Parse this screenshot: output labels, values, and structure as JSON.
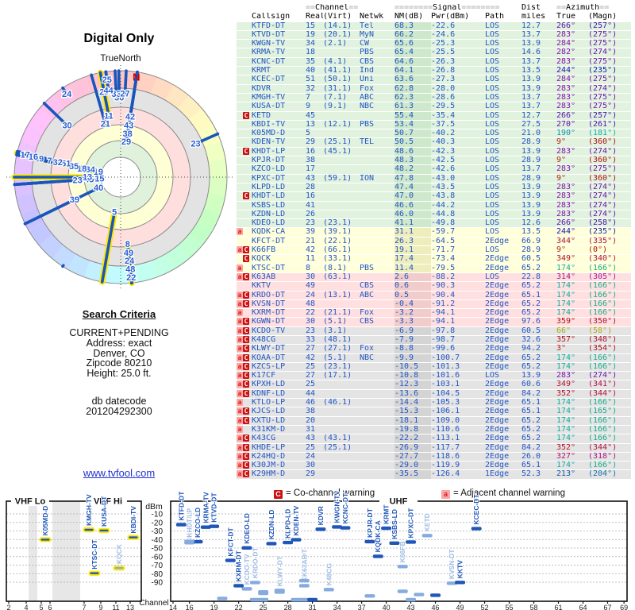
{
  "radar": {
    "title": "Digital Only",
    "north_label": "TrueNorth",
    "north_marker": "N"
  },
  "search_criteria": {
    "heading": "Search Criteria",
    "lines": [
      "CURRENT+PENDING",
      "Address: exact",
      "Denver, CO",
      "Zipcode 80210",
      "Height: 25.0 ft."
    ],
    "db_label": "db datecode",
    "db_value": "201204292300"
  },
  "link": "www.tvfool.com",
  "legend": {
    "co_flag": "C",
    "co_text": "= Co-channel warning",
    "adj_flag": "a",
    "adj_text": "= Adjacent channel warning"
  },
  "table": {
    "headers": {
      "channel": {
        "eq_l": "==",
        "label": "Channel",
        "eq_r": "=="
      },
      "signal": {
        "eq_l": "========",
        "label": "Signal",
        "eq_r": "========"
      },
      "dist": "Dist",
      "azimuth": {
        "eq_l": "==",
        "label": "Azimuth",
        "eq_r": "=="
      },
      "cols": [
        "Callsign",
        "Real",
        "(Virt)",
        "Netwk",
        "NM(dB)",
        "Pwr(dBm)",
        "Path",
        "miles",
        "True",
        "(Magn)"
      ]
    }
  },
  "stations_columns": [
    "flag_a",
    "flag_c",
    "callsign",
    "ch_real",
    "ch_virt",
    "netwk",
    "nm_db",
    "pwr_dbm",
    "path",
    "dist_miles",
    "az_true_deg",
    "az_magn_deg"
  ],
  "stations": [
    [
      0,
      0,
      "KTFD-DT",
      15,
      "14.1",
      "Tel",
      68.3,
      -22.6,
      "LOS",
      12.7,
      266,
      257
    ],
    [
      0,
      0,
      "KTVD-DT",
      19,
      "20.1",
      "MyN",
      66.2,
      -24.6,
      "LOS",
      13.7,
      283,
      275
    ],
    [
      0,
      0,
      "KWGN-TV",
      34,
      "2.1",
      "CW",
      65.6,
      -25.3,
      "LOS",
      13.9,
      284,
      275
    ],
    [
      0,
      0,
      "KRMA-TV",
      18,
      "",
      "PBS",
      65.4,
      -25.5,
      "LOS",
      14.6,
      282,
      274
    ],
    [
      0,
      0,
      "KCNC-DT",
      35,
      "4.1",
      "CBS",
      64.6,
      -26.3,
      "LOS",
      13.7,
      283,
      275
    ],
    [
      0,
      0,
      "KRMT",
      40,
      "41.1",
      "Ind",
      64.1,
      -26.8,
      "LOS",
      13.5,
      244,
      235
    ],
    [
      0,
      0,
      "KCEC-DT",
      51,
      "50.1",
      "Uni",
      63.6,
      -27.3,
      "LOS",
      13.9,
      284,
      275
    ],
    [
      0,
      0,
      "KDVR",
      32,
      "31.1",
      "Fox",
      62.8,
      -28.0,
      "LOS",
      13.9,
      283,
      274
    ],
    [
      0,
      0,
      "KMGH-TV",
      7,
      "7.1",
      "ABC",
      62.3,
      -28.6,
      "LOS",
      13.7,
      283,
      275
    ],
    [
      0,
      0,
      "KUSA-DT",
      9,
      "9.1",
      "NBC",
      61.3,
      -29.5,
      "LOS",
      13.7,
      283,
      275
    ],
    [
      0,
      1,
      "KETD",
      45,
      "",
      "",
      55.4,
      -35.4,
      "LOS",
      12.7,
      266,
      257
    ],
    [
      0,
      0,
      "KBDI-TV",
      13,
      "12.1",
      "PBS",
      53.4,
      -37.5,
      "LOS",
      27.5,
      270,
      261
    ],
    [
      0,
      0,
      "K05MD-D",
      5,
      "",
      "",
      50.7,
      -40.2,
      "LOS",
      21.0,
      190,
      181
    ],
    [
      0,
      0,
      "KDEN-TV",
      29,
      "25.1",
      "TEL",
      50.5,
      -40.3,
      "LOS",
      28.9,
      9,
      360
    ],
    [
      0,
      1,
      "KHDT-LP",
      16,
      "45.1",
      "",
      48.6,
      -42.3,
      "LOS",
      13.9,
      283,
      274
    ],
    [
      0,
      0,
      "KPJR-DT",
      38,
      "",
      "",
      48.3,
      -42.5,
      "LOS",
      28.9,
      9,
      360
    ],
    [
      0,
      0,
      "KZCO-LD",
      17,
      "",
      "",
      48.2,
      -42.6,
      "LOS",
      13.7,
      283,
      275
    ],
    [
      0,
      0,
      "KPXC-DT",
      43,
      "59.1",
      "ION",
      47.8,
      -43.0,
      "LOS",
      28.9,
      9,
      360
    ],
    [
      0,
      0,
      "KLPD-LD",
      28,
      "",
      "",
      47.4,
      -43.5,
      "LOS",
      13.9,
      283,
      274
    ],
    [
      0,
      1,
      "KHDT-LD",
      16,
      "",
      "",
      47.0,
      -43.8,
      "LOS",
      13.9,
      283,
      274
    ],
    [
      0,
      0,
      "KSBS-LD",
      41,
      "",
      "",
      46.6,
      -44.2,
      "LOS",
      13.9,
      283,
      274
    ],
    [
      0,
      0,
      "KZDN-LD",
      26,
      "",
      "",
      46.0,
      -44.8,
      "LOS",
      13.9,
      283,
      274
    ],
    [
      0,
      0,
      "KDEO-LD",
      23,
      "23.1",
      "",
      41.1,
      -49.8,
      "LOS",
      12.6,
      266,
      258
    ],
    [
      1,
      0,
      "KQDK-CA",
      39,
      "39.1",
      "",
      31.1,
      -59.7,
      "LOS",
      13.5,
      244,
      235
    ],
    [
      0,
      0,
      "KFCT-DT",
      21,
      "22.1",
      "",
      26.3,
      -64.5,
      "2Edge",
      66.9,
      344,
      335
    ],
    [
      1,
      1,
      "K66FB",
      42,
      "66.1",
      "",
      19.1,
      -71.7,
      "LOS",
      28.9,
      9,
      0
    ],
    [
      0,
      1,
      "KQCK",
      11,
      "33.1",
      "",
      17.4,
      -73.4,
      "2Edge",
      60.5,
      349,
      340
    ],
    [
      1,
      0,
      "KTSC-DT",
      8,
      "8.1",
      "PBS",
      11.4,
      -79.5,
      "2Edge",
      65.2,
      174,
      166
    ],
    [
      1,
      1,
      "K63AB",
      30,
      "63.1",
      "",
      2.6,
      -88.2,
      "LOS",
      22.8,
      314,
      305
    ],
    [
      0,
      0,
      "KKTV",
      49,
      "",
      "CBS",
      0.6,
      -90.3,
      "2Edge",
      65.2,
      174,
      166
    ],
    [
      1,
      1,
      "KRDO-DT",
      24,
      "13.1",
      "ABC",
      0.5,
      -90.4,
      "2Edge",
      65.1,
      174,
      166
    ],
    [
      1,
      1,
      "KVSN-DT",
      48,
      "",
      "",
      -0.4,
      -91.2,
      "2Edge",
      65.2,
      174,
      166
    ],
    [
      1,
      0,
      "KXRM-DT",
      22,
      "21.1",
      "Fox",
      -3.2,
      -94.1,
      "2Edge",
      65.2,
      174,
      166
    ],
    [
      1,
      1,
      "KGWN-DT",
      30,
      "5.1",
      "CBS",
      -3.3,
      -94.1,
      "2Edge",
      97.6,
      359,
      350
    ],
    [
      1,
      1,
      "KCDO-TV",
      23,
      "3.1",
      "",
      -6.9,
      -97.8,
      "2Edge",
      60.5,
      66,
      58
    ],
    [
      1,
      1,
      "K48CG",
      33,
      "48.1",
      "",
      -7.9,
      -98.7,
      "2Edge",
      32.6,
      357,
      348
    ],
    [
      1,
      1,
      "KLWY-DT",
      27,
      "27.1",
      "Fox",
      -8.8,
      -99.6,
      "2Edge",
      94.2,
      3,
      354
    ],
    [
      1,
      1,
      "KOAA-DT",
      42,
      "5.1",
      "NBC",
      -9.9,
      -100.7,
      "2Edge",
      65.2,
      174,
      166
    ],
    [
      1,
      1,
      "KZCS-LP",
      25,
      "23.1",
      "",
      -10.5,
      -101.3,
      "2Edge",
      65.2,
      174,
      166
    ],
    [
      1,
      1,
      "K17CF",
      27,
      "17.1",
      "",
      -10.8,
      -101.6,
      "LOS",
      13.9,
      283,
      274
    ],
    [
      1,
      1,
      "KPXH-LD",
      25,
      "",
      "",
      -12.3,
      -103.1,
      "2Edge",
      60.6,
      349,
      341
    ],
    [
      1,
      1,
      "KDNF-LD",
      44,
      "",
      "",
      -13.6,
      -104.5,
      "2Edge",
      84.2,
      352,
      344
    ],
    [
      1,
      0,
      "KTLO-LP",
      46,
      "46.1",
      "",
      -14.4,
      -105.3,
      "2Edge",
      65.1,
      174,
      166
    ],
    [
      1,
      1,
      "KJCS-LD",
      38,
      "",
      "",
      -15.3,
      -106.1,
      "2Edge",
      65.1,
      174,
      165
    ],
    [
      1,
      1,
      "KXTU-LD",
      20,
      "",
      "",
      -18.1,
      -109.0,
      "2Edge",
      65.2,
      174,
      166
    ],
    [
      1,
      0,
      "K31KM-D",
      31,
      "",
      "",
      -19.8,
      -110.6,
      "2Edge",
      65.2,
      174,
      166
    ],
    [
      1,
      1,
      "K43CG",
      43,
      "43.1",
      "",
      -22.2,
      -113.1,
      "2Edge",
      65.2,
      174,
      166
    ],
    [
      1,
      1,
      "KHDE-LP",
      25,
      "25.1",
      "",
      -26.9,
      -117.7,
      "2Edge",
      84.2,
      352,
      344
    ],
    [
      1,
      1,
      "K24HQ-D",
      24,
      "",
      "",
      -27.7,
      -118.6,
      "2Edge",
      26.0,
      327,
      318
    ],
    [
      1,
      1,
      "K30JM-D",
      30,
      "",
      "",
      -29.0,
      -119.9,
      "2Edge",
      65.1,
      174,
      166
    ],
    [
      1,
      1,
      "K29HM-D",
      29,
      "",
      "",
      -35.5,
      -126.4,
      "1Edge",
      52.3,
      213,
      204
    ]
  ],
  "chart_data": [
    {
      "id": "azimuth-radar",
      "type": "radar",
      "title": "Digital Only",
      "north_label": "TrueNorth",
      "angle": "az_true_deg (0 = true north, clockwise)",
      "radius": "nm_db noise margin; 70 dB near center, -37 dB at rim (bars drawn rim-to-tip)",
      "bands_outer_to_inner": [
        "compass-hue pastel ring",
        "gray",
        "pink",
        "yellow",
        "green"
      ],
      "bar_labels": "ch_real",
      "vhf_highlight": "yellow outline on real channels 2-13",
      "points_from": "stations"
    },
    {
      "id": "signal-by-channel",
      "type": "scatter",
      "xlabel": "Channel",
      "ylabel": "dBm",
      "ylim": [
        -95,
        -5
      ],
      "y_ticks": [
        -10,
        -20,
        -30,
        -40,
        -50,
        -60,
        -70,
        -80,
        -90
      ],
      "sections": [
        {
          "label": "VHF Lo",
          "ticks": [
            2,
            4,
            5,
            6
          ]
        },
        {
          "label": "VHF Hi",
          "ticks": [
            7,
            9,
            11,
            13
          ]
        },
        {
          "label": "UHF",
          "ticks": [
            14,
            16,
            19,
            22,
            25,
            28,
            31,
            34,
            37,
            40,
            43,
            46,
            49,
            52,
            55,
            58,
            61,
            64,
            67,
            69
          ]
        }
      ],
      "marker_rule": "dark blue = normal; pale blue = co-channel (C) flagged; yellow outline = VHF real channel; labels shown for pwr_dbm >= -100",
      "points_from": "stations (x = ch_real, y = pwr_dbm, label = callsign)"
    }
  ],
  "colors": {
    "data_blue": "#2256c4",
    "pale_blue": "#86acdf",
    "pale_blue_label": "#9cb9e2",
    "warn_yellow": "#ffe800",
    "flag_c_bg": "#cc1111",
    "flag_a_bg": "#ffa3a3",
    "row_green": "#e1f2df",
    "row_yellow": "#ffffd9",
    "row_pink": "#ffdfdf",
    "row_gray": "#e4e4e4",
    "north_red": "#cc0000"
  }
}
